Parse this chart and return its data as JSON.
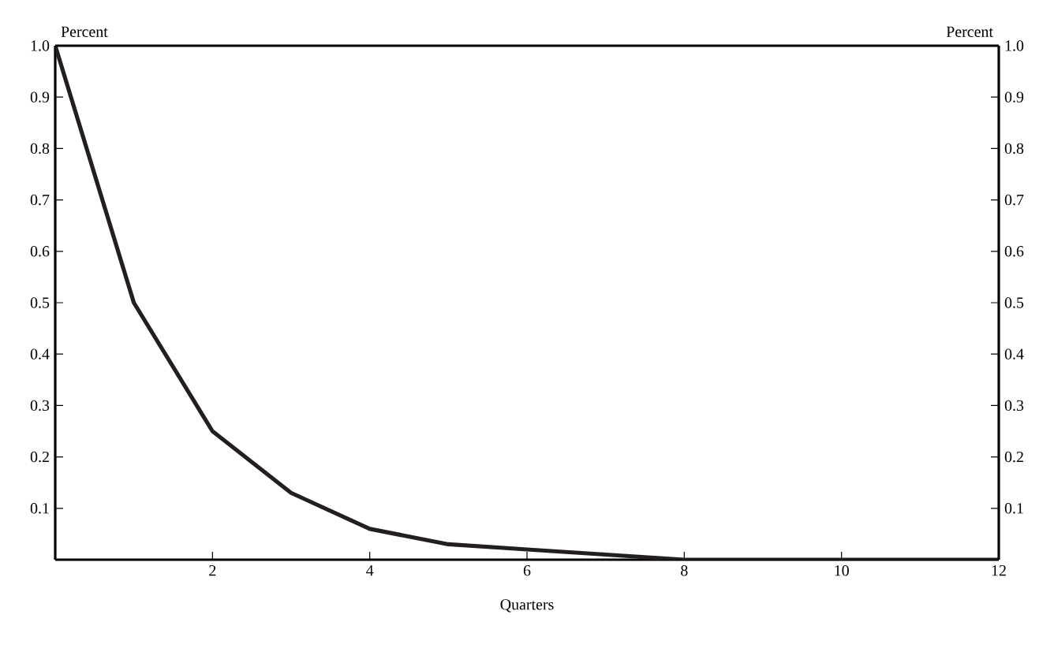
{
  "chart_data": {
    "type": "line",
    "xlabel": "Quarters",
    "ylabel": "Percent",
    "y2label": "Percent",
    "x": [
      0,
      1,
      2,
      3,
      4,
      5,
      6,
      7,
      8,
      9,
      10,
      11,
      12
    ],
    "series": [
      {
        "color": "#231f20",
        "values": [
          1.0,
          0.5,
          0.25,
          0.13,
          0.06,
          0.03,
          0.02,
          0.01,
          0,
          0,
          0,
          0,
          0
        ]
      }
    ],
    "xlim": [
      0,
      12
    ],
    "xticks": [
      2,
      4,
      6,
      8,
      10,
      12
    ],
    "ylim": [
      0,
      1
    ],
    "yticks": [
      0.1,
      0.2,
      0.3,
      0.4,
      0.5,
      0.6,
      0.7,
      0.8,
      0.9,
      {
        "value": 1,
        "label": "1.0"
      }
    ],
    "y2lim": [
      0,
      1
    ],
    "y2ticks": [
      0.1,
      0.2,
      0.3,
      0.4,
      0.5,
      0.6,
      0.7,
      0.8,
      0.9,
      {
        "value": 1,
        "label": "1.0"
      }
    ],
    "grid": false,
    "legend": false,
    "marker": "none",
    "line_style": "solid"
  }
}
